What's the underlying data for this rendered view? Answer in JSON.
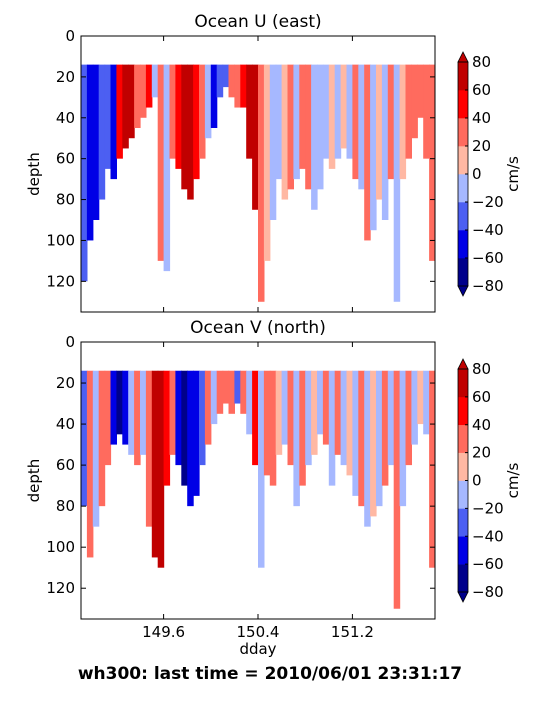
{
  "chart_data": [
    {
      "type": "heatmap",
      "title": "Ocean U (east)",
      "xlabel": "",
      "ylabel": "depth",
      "xlim": [
        148.9,
        151.9
      ],
      "ylim": [
        135,
        0
      ],
      "yticks": [
        0,
        20,
        40,
        60,
        80,
        100,
        120
      ],
      "colorbar": {
        "label": "cm/s",
        "levels": [
          -80,
          -60,
          -40,
          -20,
          0,
          20,
          40,
          60,
          80
        ],
        "tick_labels": [
          "−80",
          "−60",
          "−40",
          "−20",
          "0",
          "20",
          "40",
          "60",
          "80"
        ]
      },
      "data_top_depth": 14,
      "profiles": [
        {
          "x": 148.9,
          "v": -30,
          "bottom": 120
        },
        {
          "x": 148.95,
          "v": -50,
          "bottom": 100
        },
        {
          "x": 149.0,
          "v": -60,
          "bottom": 90
        },
        {
          "x": 149.05,
          "v": -40,
          "bottom": 80
        },
        {
          "x": 149.1,
          "v": -30,
          "bottom": 65
        },
        {
          "x": 149.15,
          "v": -50,
          "bottom": 70
        },
        {
          "x": 149.2,
          "v": 50,
          "bottom": 60
        },
        {
          "x": 149.25,
          "v": 70,
          "bottom": 55
        },
        {
          "x": 149.3,
          "v": 60,
          "bottom": 50
        },
        {
          "x": 149.35,
          "v": 30,
          "bottom": 45
        },
        {
          "x": 149.4,
          "v": 25,
          "bottom": 40
        },
        {
          "x": 149.45,
          "v": 50,
          "bottom": 35
        },
        {
          "x": 149.5,
          "v": -10,
          "bottom": 30
        },
        {
          "x": 149.55,
          "v": 25,
          "bottom": 110
        },
        {
          "x": 149.6,
          "v": -15,
          "bottom": 115
        },
        {
          "x": 149.65,
          "v": 25,
          "bottom": 60
        },
        {
          "x": 149.7,
          "v": 55,
          "bottom": 65
        },
        {
          "x": 149.75,
          "v": 60,
          "bottom": 75
        },
        {
          "x": 149.8,
          "v": 65,
          "bottom": 80
        },
        {
          "x": 149.85,
          "v": 50,
          "bottom": 70
        },
        {
          "x": 149.9,
          "v": 25,
          "bottom": 60
        },
        {
          "x": 149.95,
          "v": -10,
          "bottom": 50
        },
        {
          "x": 150.0,
          "v": -50,
          "bottom": 45
        },
        {
          "x": 150.05,
          "v": -40,
          "bottom": 30
        },
        {
          "x": 150.1,
          "v": -30,
          "bottom": 25
        },
        {
          "x": 150.15,
          "v": 20,
          "bottom": 30
        },
        {
          "x": 150.2,
          "v": 30,
          "bottom": 35
        },
        {
          "x": 150.25,
          "v": 55,
          "bottom": 35
        },
        {
          "x": 150.3,
          "v": 70,
          "bottom": 60
        },
        {
          "x": 150.35,
          "v": 60,
          "bottom": 85
        },
        {
          "x": 150.4,
          "v": 30,
          "bottom": 130
        },
        {
          "x": 150.45,
          "v": 15,
          "bottom": 110
        },
        {
          "x": 150.5,
          "v": -10,
          "bottom": 90
        },
        {
          "x": 150.55,
          "v": -5,
          "bottom": 70
        },
        {
          "x": 150.6,
          "v": 15,
          "bottom": 80
        },
        {
          "x": 150.65,
          "v": 25,
          "bottom": 75
        },
        {
          "x": 150.7,
          "v": -10,
          "bottom": 70
        },
        {
          "x": 150.75,
          "v": 30,
          "bottom": 65
        },
        {
          "x": 150.8,
          "v": 25,
          "bottom": 75
        },
        {
          "x": 150.85,
          "v": -15,
          "bottom": 85
        },
        {
          "x": 150.9,
          "v": -10,
          "bottom": 75
        },
        {
          "x": 150.95,
          "v": -5,
          "bottom": 60
        },
        {
          "x": 151.0,
          "v": 10,
          "bottom": 65
        },
        {
          "x": 151.05,
          "v": -10,
          "bottom": 60
        },
        {
          "x": 151.1,
          "v": 15,
          "bottom": 55
        },
        {
          "x": 151.15,
          "v": -10,
          "bottom": 60
        },
        {
          "x": 151.2,
          "v": 25,
          "bottom": 70
        },
        {
          "x": 151.25,
          "v": -12,
          "bottom": 75
        },
        {
          "x": 151.3,
          "v": 20,
          "bottom": 100
        },
        {
          "x": 151.35,
          "v": -10,
          "bottom": 95
        },
        {
          "x": 151.4,
          "v": 15,
          "bottom": 80
        },
        {
          "x": 151.45,
          "v": -10,
          "bottom": 90
        },
        {
          "x": 151.5,
          "v": 25,
          "bottom": 70
        },
        {
          "x": 151.55,
          "v": -12,
          "bottom": 130
        },
        {
          "x": 151.6,
          "v": 15,
          "bottom": 70
        },
        {
          "x": 151.65,
          "v": 25,
          "bottom": 60
        },
        {
          "x": 151.7,
          "v": 30,
          "bottom": 50
        },
        {
          "x": 151.75,
          "v": 20,
          "bottom": 40
        },
        {
          "x": 151.8,
          "v": 35,
          "bottom": 60
        },
        {
          "x": 151.85,
          "v": 25,
          "bottom": 110
        }
      ]
    },
    {
      "type": "heatmap",
      "title": "Ocean V (north)",
      "xlabel": "dday",
      "ylabel": "depth",
      "xlim": [
        148.9,
        151.9
      ],
      "ylim": [
        135,
        0
      ],
      "xticks": [
        149.6,
        150.4,
        151.2
      ],
      "xtick_labels": [
        "149.6",
        "150.4",
        "151.2"
      ],
      "yticks": [
        0,
        20,
        40,
        60,
        80,
        100,
        120
      ],
      "colorbar": {
        "label": "cm/s",
        "levels": [
          -80,
          -60,
          -40,
          -20,
          0,
          20,
          40,
          60,
          80
        ],
        "tick_labels": [
          "−80",
          "−60",
          "−40",
          "−20",
          "0",
          "20",
          "40",
          "60",
          "80"
        ]
      },
      "data_top_depth": 14,
      "profiles": [
        {
          "x": 148.9,
          "v": -25,
          "bottom": 80
        },
        {
          "x": 148.95,
          "v": 30,
          "bottom": 105
        },
        {
          "x": 149.0,
          "v": -15,
          "bottom": 90
        },
        {
          "x": 149.05,
          "v": 35,
          "bottom": 80
        },
        {
          "x": 149.1,
          "v": 20,
          "bottom": 60
        },
        {
          "x": 149.15,
          "v": -45,
          "bottom": 50
        },
        {
          "x": 149.2,
          "v": -70,
          "bottom": 45
        },
        {
          "x": 149.25,
          "v": -55,
          "bottom": 50
        },
        {
          "x": 149.3,
          "v": -20,
          "bottom": 55
        },
        {
          "x": 149.35,
          "v": 20,
          "bottom": 60
        },
        {
          "x": 149.4,
          "v": -15,
          "bottom": 55
        },
        {
          "x": 149.45,
          "v": 25,
          "bottom": 90
        },
        {
          "x": 149.5,
          "v": 65,
          "bottom": 105
        },
        {
          "x": 149.55,
          "v": 60,
          "bottom": 110
        },
        {
          "x": 149.6,
          "v": 50,
          "bottom": 70
        },
        {
          "x": 149.65,
          "v": 25,
          "bottom": 55
        },
        {
          "x": 149.7,
          "v": -50,
          "bottom": 60
        },
        {
          "x": 149.75,
          "v": -65,
          "bottom": 70
        },
        {
          "x": 149.8,
          "v": -45,
          "bottom": 80
        },
        {
          "x": 149.85,
          "v": -60,
          "bottom": 75
        },
        {
          "x": 149.9,
          "v": -40,
          "bottom": 60
        },
        {
          "x": 149.95,
          "v": 25,
          "bottom": 50
        },
        {
          "x": 150.0,
          "v": -15,
          "bottom": 40
        },
        {
          "x": 150.05,
          "v": 20,
          "bottom": 35
        },
        {
          "x": 150.1,
          "v": 30,
          "bottom": 30
        },
        {
          "x": 150.15,
          "v": 20,
          "bottom": 35
        },
        {
          "x": 150.2,
          "v": -30,
          "bottom": 30
        },
        {
          "x": 150.25,
          "v": 25,
          "bottom": 35
        },
        {
          "x": 150.3,
          "v": -15,
          "bottom": 45
        },
        {
          "x": 150.35,
          "v": 40,
          "bottom": 60
        },
        {
          "x": 150.4,
          "v": -10,
          "bottom": 110
        },
        {
          "x": 150.45,
          "v": 20,
          "bottom": 65
        },
        {
          "x": 150.5,
          "v": 30,
          "bottom": 70
        },
        {
          "x": 150.55,
          "v": 15,
          "bottom": 55
        },
        {
          "x": 150.6,
          "v": -10,
          "bottom": 50
        },
        {
          "x": 150.65,
          "v": 25,
          "bottom": 60
        },
        {
          "x": 150.7,
          "v": -12,
          "bottom": 80
        },
        {
          "x": 150.75,
          "v": 20,
          "bottom": 70
        },
        {
          "x": 150.8,
          "v": -10,
          "bottom": 60
        },
        {
          "x": 150.85,
          "v": 15,
          "bottom": 55
        },
        {
          "x": 150.9,
          "v": -12,
          "bottom": 45
        },
        {
          "x": 150.95,
          "v": 20,
          "bottom": 50
        },
        {
          "x": 151.0,
          "v": -15,
          "bottom": 70
        },
        {
          "x": 151.05,
          "v": 25,
          "bottom": 55
        },
        {
          "x": 151.1,
          "v": -10,
          "bottom": 60
        },
        {
          "x": 151.15,
          "v": 15,
          "bottom": 65
        },
        {
          "x": 151.2,
          "v": -10,
          "bottom": 75
        },
        {
          "x": 151.25,
          "v": 20,
          "bottom": 80
        },
        {
          "x": 151.3,
          "v": -12,
          "bottom": 90
        },
        {
          "x": 151.35,
          "v": 15,
          "bottom": 85
        },
        {
          "x": 151.4,
          "v": -10,
          "bottom": 80
        },
        {
          "x": 151.45,
          "v": 20,
          "bottom": 70
        },
        {
          "x": 151.5,
          "v": -12,
          "bottom": 60
        },
        {
          "x": 151.55,
          "v": 25,
          "bottom": 130
        },
        {
          "x": 151.6,
          "v": -10,
          "bottom": 80
        },
        {
          "x": 151.65,
          "v": 20,
          "bottom": 60
        },
        {
          "x": 151.7,
          "v": -15,
          "bottom": 50
        },
        {
          "x": 151.75,
          "v": 15,
          "bottom": 40
        },
        {
          "x": 151.8,
          "v": -20,
          "bottom": 45
        },
        {
          "x": 151.85,
          "v": 25,
          "bottom": 110
        }
      ]
    }
  ],
  "colors": {
    "levels_palette": [
      "#00008b",
      "#0000e6",
      "#4c5ff2",
      "#a6b8ff",
      "#ffb8a3",
      "#ff6b5e",
      "#ff0000",
      "#c00000"
    ],
    "axis": "#000000",
    "background": "#ffffff"
  },
  "footer": "wh300: last time = 2010/06/01 23:31:17"
}
